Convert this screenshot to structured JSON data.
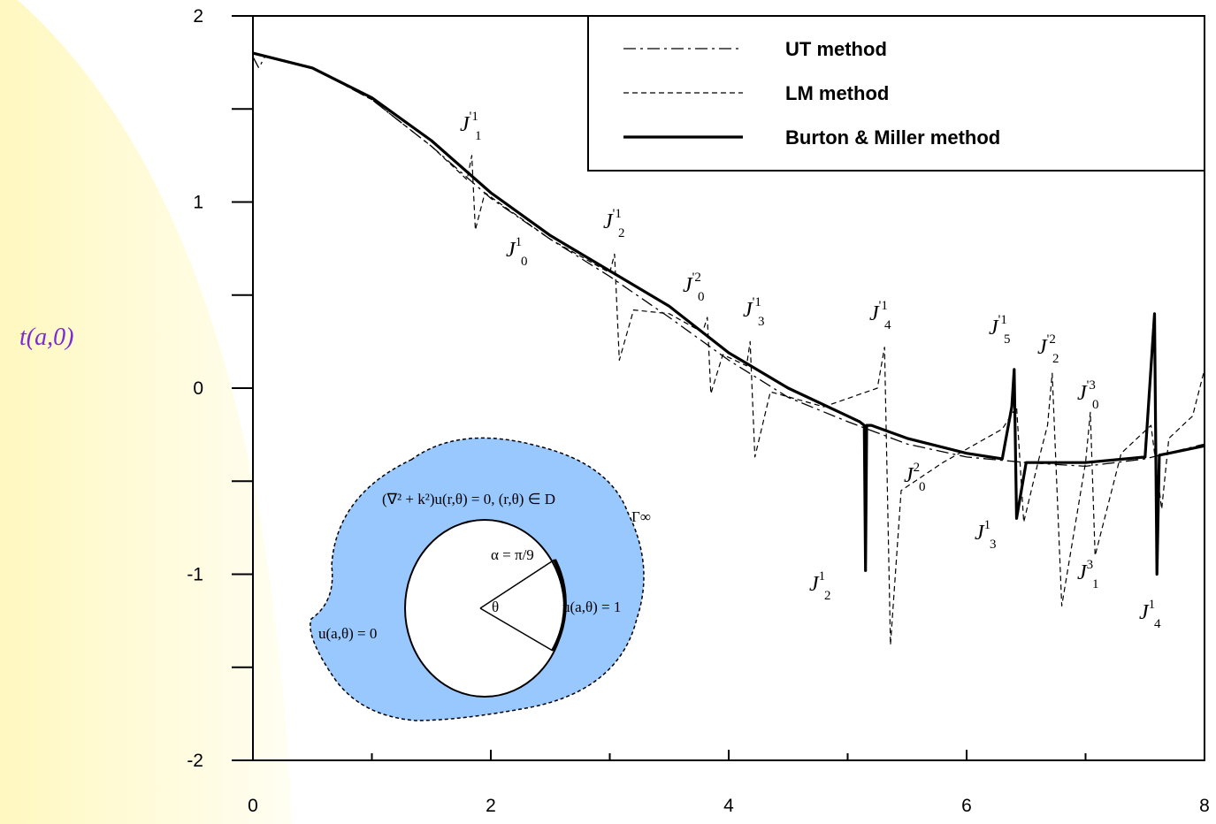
{
  "chart_data": {
    "type": "line",
    "y_label": "t(a,0)",
    "xlim": [
      0,
      8
    ],
    "xticks": [
      0,
      2,
      4,
      6,
      8
    ],
    "xminorticks": [
      1,
      3,
      5,
      7
    ],
    "ylim": [
      -2,
      2
    ],
    "yticks": [
      -2,
      -1,
      0,
      1,
      2
    ],
    "yminorticks": [
      -1.5,
      -0.5,
      0.5,
      1.5
    ],
    "legend": "top-right",
    "series": [
      {
        "name": "UT method",
        "color": "#000000",
        "style": "dashdot",
        "x": [
          0,
          0.05,
          0.1,
          0.5,
          1,
          1.5,
          2,
          2.5,
          3,
          3.5,
          4,
          4.5,
          5,
          5.5,
          6,
          6.5,
          7,
          7.5,
          8
        ],
        "values": [
          1.78,
          1.72,
          1.78,
          1.72,
          1.55,
          1.3,
          1.02,
          0.8,
          0.6,
          0.38,
          0.15,
          -0.05,
          -0.18,
          -0.3,
          -0.37,
          -0.4,
          -0.42,
          -0.38,
          -0.3
        ]
      },
      {
        "name": "LM method",
        "color": "#000000",
        "style": "dashed",
        "x": [
          0,
          0.5,
          1,
          1.5,
          1.8,
          1.84,
          1.87,
          1.95,
          2.5,
          3.0,
          3.04,
          3.08,
          3.2,
          3.5,
          3.78,
          3.82,
          3.85,
          3.95,
          4.15,
          4.18,
          4.22,
          4.35,
          4.8,
          5.25,
          5.31,
          5.36,
          5.45,
          5.8,
          6.3,
          6.42,
          6.48,
          6.6,
          6.68,
          6.72,
          6.8,
          7.0,
          7.04,
          7.08,
          7.3,
          7.55,
          7.64,
          7.7,
          7.9,
          8
        ],
        "values": [
          1.8,
          1.72,
          1.55,
          1.3,
          1.12,
          1.25,
          0.85,
          1.05,
          0.8,
          0.62,
          0.72,
          0.15,
          0.42,
          0.4,
          0.3,
          0.38,
          -0.03,
          0.18,
          0.12,
          0.25,
          -0.37,
          -0.02,
          -0.1,
          0.0,
          0.22,
          -1.38,
          -0.55,
          -0.4,
          -0.22,
          -0.1,
          -0.72,
          -0.4,
          -0.2,
          0.08,
          -1.17,
          -0.4,
          -0.13,
          -0.9,
          -0.35,
          -0.2,
          -0.65,
          -0.27,
          -0.15,
          0.1
        ]
      },
      {
        "name": "Burton & Miller method",
        "color": "#000000",
        "style": "thick",
        "x": [
          0,
          0.5,
          1,
          1.5,
          2,
          2.5,
          3,
          3.5,
          4,
          4.5,
          5,
          5.1,
          5.14,
          5.15,
          5.16,
          5.2,
          5.5,
          6,
          6.3,
          6.38,
          6.4,
          6.42,
          6.5,
          7,
          7.5,
          7.58,
          7.6,
          7.62,
          7.7,
          8
        ],
        "values": [
          1.8,
          1.72,
          1.56,
          1.33,
          1.05,
          0.82,
          0.63,
          0.44,
          0.19,
          0.0,
          -0.15,
          -0.18,
          -0.2,
          -0.98,
          -0.2,
          -0.2,
          -0.27,
          -0.35,
          -0.38,
          -0.1,
          0.1,
          -0.7,
          -0.4,
          -0.4,
          -0.37,
          0.4,
          -1.0,
          -0.36,
          -0.35,
          -0.31
        ]
      }
    ],
    "annotations": [
      {
        "text": "J",
        "sup": "'1",
        "sub": "1"
      },
      {
        "text": "J",
        "sup": "1",
        "sub": "0"
      },
      {
        "text": "J",
        "sup": "'1",
        "sub": "2"
      },
      {
        "text": "J",
        "sup": "'2",
        "sub": "0"
      },
      {
        "text": "J",
        "sup": "'1",
        "sub": "3"
      },
      {
        "text": "J",
        "sup": "'1",
        "sub": "4"
      },
      {
        "text": "J",
        "sup": "'1",
        "sub": "5"
      },
      {
        "text": "J",
        "sup": "'2",
        "sub": "2"
      },
      {
        "text": "J",
        "sup": "'3",
        "sub": "0"
      },
      {
        "text": "J",
        "sup": "2",
        "sub": "0"
      },
      {
        "text": "J",
        "sup": "1",
        "sub": "3"
      },
      {
        "text": "J",
        "sup": "3",
        "sub": "1"
      },
      {
        "text": "J",
        "sup": "1",
        "sub": "2"
      },
      {
        "text": "J",
        "sup": "1",
        "sub": "4"
      }
    ],
    "inset": {
      "equation": "(∇² + k²)u(r,θ) = 0,  (r,θ) ∈ D",
      "boundary": "Γ∞",
      "angle": "α = π/9",
      "theta": "θ",
      "left_bc": "u(a,θ) = 0",
      "right_bc": "u(a,θ) = 1"
    }
  }
}
